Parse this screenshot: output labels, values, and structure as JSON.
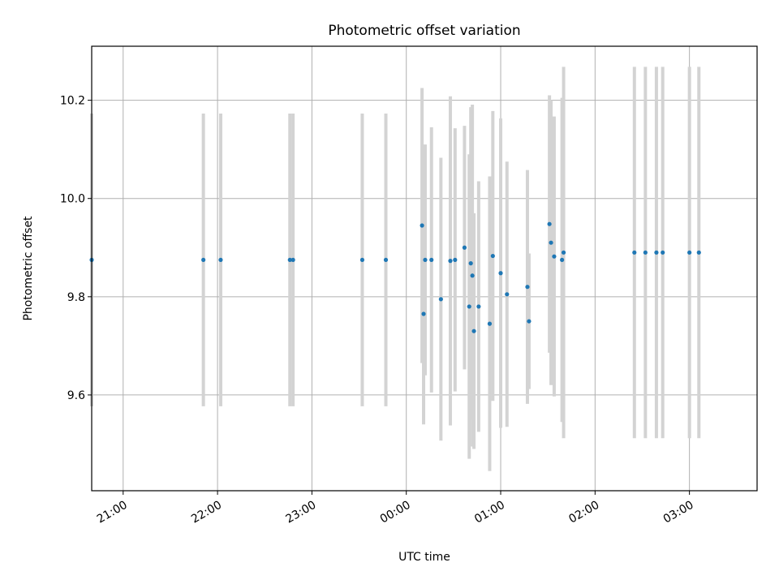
{
  "chart_data": {
    "type": "scatter",
    "title": "Photometric offset variation",
    "xlabel": "UTC time",
    "ylabel": "Photometric offset",
    "x_axis": "time",
    "xlim": [
      "20:40",
      "03:43"
    ],
    "ylim": [
      9.405,
      10.31
    ],
    "xticks": [
      "21:00",
      "22:00",
      "23:00",
      "00:00",
      "01:00",
      "02:00",
      "03:00"
    ],
    "yticks": [
      9.6,
      9.8,
      10.0,
      10.2
    ],
    "ytick_labels": [
      "9.6",
      "9.8",
      "10.0",
      "10.2"
    ],
    "grid": true,
    "legend": "none",
    "marker_color": "#1f77b4",
    "errorbar_color": "#d3d3d3",
    "points": [
      {
        "x": "20:40",
        "y": 9.875,
        "err": 0.298
      },
      {
        "x": "21:51",
        "y": 9.875,
        "err": 0.298
      },
      {
        "x": "22:02",
        "y": 9.875,
        "err": 0.298
      },
      {
        "x": "22:46",
        "y": 9.875,
        "err": 0.298
      },
      {
        "x": "22:48",
        "y": 9.875,
        "err": 0.298
      },
      {
        "x": "23:32",
        "y": 9.875,
        "err": 0.298
      },
      {
        "x": "23:47",
        "y": 9.875,
        "err": 0.298
      },
      {
        "x": "00:10",
        "y": 9.945,
        "err": 0.28
      },
      {
        "x": "00:11",
        "y": 9.765,
        "err": 0.225
      },
      {
        "x": "00:12",
        "y": 9.875,
        "err": 0.235
      },
      {
        "x": "00:16",
        "y": 9.875,
        "err": 0.27
      },
      {
        "x": "00:22",
        "y": 9.795,
        "err": 0.288
      },
      {
        "x": "00:28",
        "y": 9.873,
        "err": 0.335
      },
      {
        "x": "00:31",
        "y": 9.875,
        "err": 0.268
      },
      {
        "x": "00:37",
        "y": 9.9,
        "err": 0.248
      },
      {
        "x": "00:40",
        "y": 9.78,
        "err": 0.31
      },
      {
        "x": "00:41",
        "y": 9.868,
        "err": 0.318
      },
      {
        "x": "00:42",
        "y": 9.843,
        "err": 0.348
      },
      {
        "x": "00:43",
        "y": 9.73,
        "err": 0.24
      },
      {
        "x": "00:46",
        "y": 9.78,
        "err": 0.255
      },
      {
        "x": "00:53",
        "y": 9.745,
        "err": 0.3
      },
      {
        "x": "00:55",
        "y": 9.883,
        "err": 0.295
      },
      {
        "x": "01:00",
        "y": 9.848,
        "err": 0.315
      },
      {
        "x": "01:04",
        "y": 9.805,
        "err": 0.27
      },
      {
        "x": "01:17",
        "y": 9.82,
        "err": 0.238
      },
      {
        "x": "01:18",
        "y": 9.75,
        "err": 0.138
      },
      {
        "x": "01:31",
        "y": 9.948,
        "err": 0.262
      },
      {
        "x": "01:32",
        "y": 9.91,
        "err": 0.29
      },
      {
        "x": "01:34",
        "y": 9.882,
        "err": 0.285
      },
      {
        "x": "01:39",
        "y": 9.875,
        "err": 0.33
      },
      {
        "x": "01:40",
        "y": 9.89,
        "err": 0.378
      },
      {
        "x": "02:25",
        "y": 9.89,
        "err": 0.378
      },
      {
        "x": "02:32",
        "y": 9.89,
        "err": 0.378
      },
      {
        "x": "02:39",
        "y": 9.89,
        "err": 0.378
      },
      {
        "x": "02:43",
        "y": 9.89,
        "err": 0.378
      },
      {
        "x": "03:00",
        "y": 9.89,
        "err": 0.378
      },
      {
        "x": "03:06",
        "y": 9.89,
        "err": 0.378
      }
    ]
  }
}
